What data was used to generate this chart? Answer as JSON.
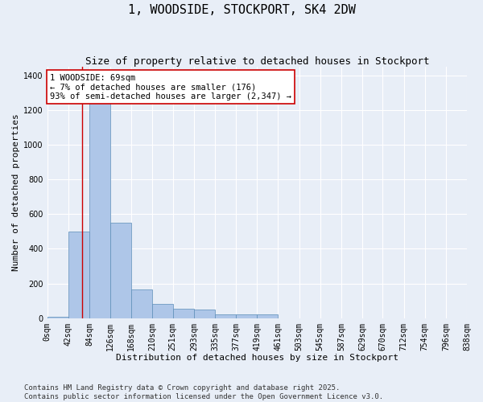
{
  "title": "1, WOODSIDE, STOCKPORT, SK4 2DW",
  "subtitle": "Size of property relative to detached houses in Stockport",
  "xlabel": "Distribution of detached houses by size in Stockport",
  "ylabel": "Number of detached properties",
  "bar_values": [
    10,
    500,
    1270,
    550,
    165,
    80,
    55,
    50,
    20,
    20,
    20,
    0,
    0,
    0,
    0,
    0,
    0,
    0,
    0,
    0
  ],
  "bin_edges": [
    0,
    42,
    84,
    126,
    168,
    210,
    251,
    293,
    335,
    377,
    419,
    461,
    503,
    545,
    587,
    629,
    670,
    712,
    754,
    796,
    838
  ],
  "bin_labels": [
    "0sqm",
    "42sqm",
    "84sqm",
    "126sqm",
    "168sqm",
    "210sqm",
    "251sqm",
    "293sqm",
    "335sqm",
    "377sqm",
    "419sqm",
    "461sqm",
    "503sqm",
    "545sqm",
    "587sqm",
    "629sqm",
    "670sqm",
    "712sqm",
    "754sqm",
    "796sqm",
    "838sqm"
  ],
  "bar_color": "#aec6e8",
  "bar_edge_color": "#5b8db8",
  "bar_edge_width": 0.5,
  "background_color": "#e8eef7",
  "grid_color": "#ffffff",
  "property_line_x": 69,
  "property_line_color": "#cc0000",
  "annotation_text": "1 WOODSIDE: 69sqm\n← 7% of detached houses are smaller (176)\n93% of semi-detached houses are larger (2,347) →",
  "annotation_box_color": "#cc0000",
  "annotation_box_facecolor": "#ffffff",
  "ylim": [
    0,
    1450
  ],
  "yticks": [
    0,
    200,
    400,
    600,
    800,
    1000,
    1200,
    1400
  ],
  "footer_text": "Contains HM Land Registry data © Crown copyright and database right 2025.\nContains public sector information licensed under the Open Government Licence v3.0.",
  "title_fontsize": 11,
  "subtitle_fontsize": 9,
  "label_fontsize": 8,
  "tick_fontsize": 7,
  "footer_fontsize": 6.5,
  "annotation_fontsize": 7.5
}
